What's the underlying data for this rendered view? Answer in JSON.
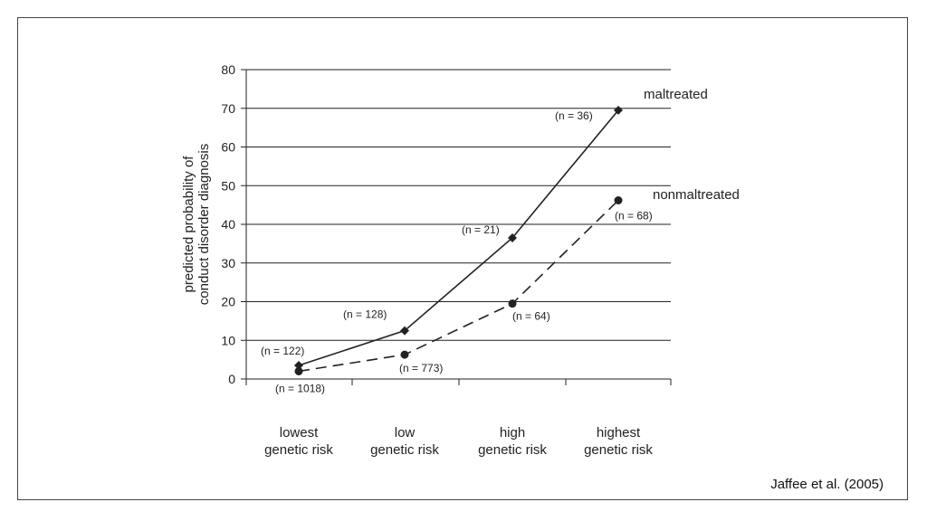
{
  "chart_data": {
    "type": "line",
    "categories": [
      [
        "lowest",
        "genetic risk"
      ],
      [
        "low",
        "genetic risk"
      ],
      [
        "high",
        "genetic risk"
      ],
      [
        "highest",
        "genetic risk"
      ]
    ],
    "ylabel": [
      "predicted probability of",
      "conduct disorder diagnosis"
    ],
    "ylim": [
      0,
      80
    ],
    "yticks": [
      0,
      10,
      20,
      30,
      40,
      50,
      60,
      70,
      80
    ],
    "grid": true,
    "series": [
      {
        "name": "maltreated",
        "style": "solid",
        "marker": "diamond",
        "values": [
          3.5,
          12.5,
          36.5,
          69.5
        ],
        "labels": [
          "(n = 122)",
          "(n = 128)",
          "(n = 21)",
          "(n = 36)"
        ]
      },
      {
        "name": "nonmaltreated",
        "style": "dashed",
        "marker": "circle",
        "values": [
          2,
          6.3,
          19.5,
          46.2
        ],
        "labels": [
          "(n = 1018)",
          "(n = 773)",
          "(n = 64)",
          "(n = 68)"
        ]
      }
    ]
  },
  "citation": "Jaffee et al. (2005)"
}
